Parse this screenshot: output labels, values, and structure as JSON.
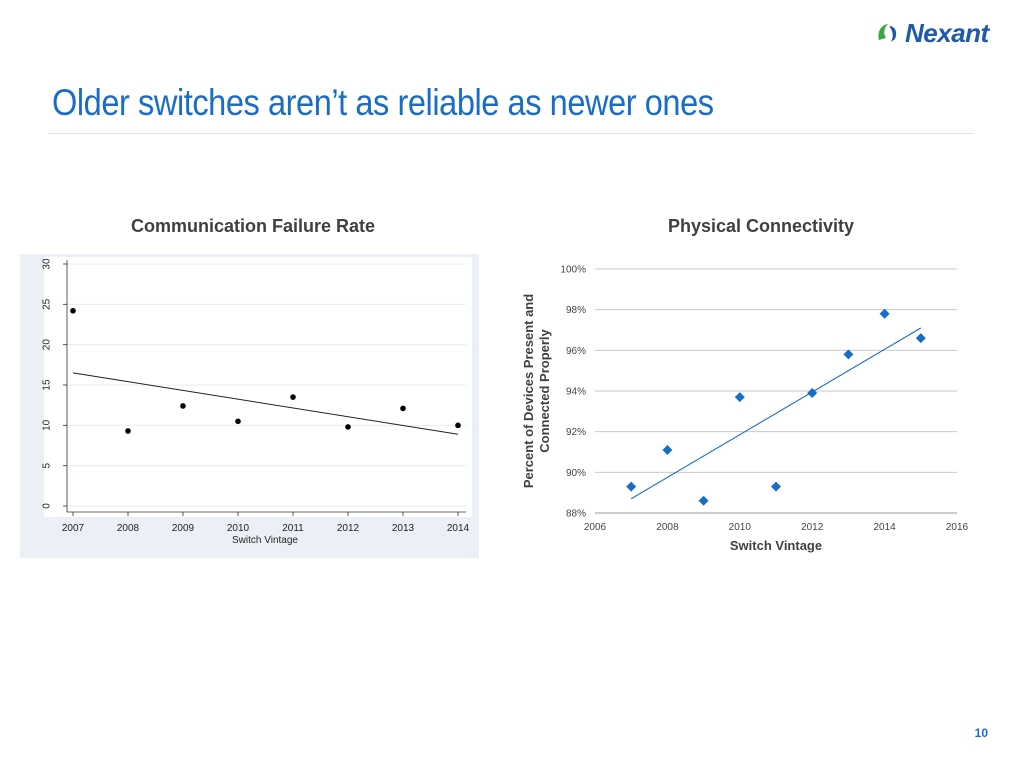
{
  "slide": {
    "title": "Older switches aren’t as reliable as newer ones",
    "page_number": "10",
    "logo_text": "Nexant",
    "title_color": "#1a6dc7"
  },
  "chart_data": [
    {
      "type": "scatter",
      "title": "Communication Failure Rate",
      "xlabel": "Switch Vintage",
      "ylabel": "",
      "x_ticks": [
        "2007",
        "2008",
        "2009",
        "2010",
        "2011",
        "2012",
        "2013",
        "2014"
      ],
      "y_ticks": [
        "0",
        "5",
        "10",
        "15",
        "20",
        "25",
        "30"
      ],
      "xlim": [
        2007,
        2014
      ],
      "ylim": [
        0,
        30
      ],
      "points": [
        {
          "x": 2007,
          "y": 24.2
        },
        {
          "x": 2008,
          "y": 9.3
        },
        {
          "x": 2009,
          "y": 12.4
        },
        {
          "x": 2010,
          "y": 10.5
        },
        {
          "x": 2011,
          "y": 13.5
        },
        {
          "x": 2012,
          "y": 9.8
        },
        {
          "x": 2013,
          "y": 12.1
        },
        {
          "x": 2014,
          "y": 10.0
        }
      ],
      "trendline": {
        "x": [
          2007,
          2014
        ],
        "y": [
          16.5,
          8.9
        ]
      },
      "marker_color": "#000000",
      "grid": true,
      "legend": "none"
    },
    {
      "type": "scatter",
      "title": "Physical Connectivity",
      "xlabel": "Switch Vintage",
      "ylabel": "Percent of Devices Present and Connected Properly",
      "x_ticks": [
        "2006",
        "2008",
        "2010",
        "2012",
        "2014",
        "2016"
      ],
      "y_ticks": [
        "88%",
        "90%",
        "92%",
        "94%",
        "96%",
        "98%",
        "100%"
      ],
      "xlim": [
        2006,
        2016
      ],
      "ylim": [
        88,
        100
      ],
      "points": [
        {
          "x": 2007,
          "y": 89.3
        },
        {
          "x": 2008,
          "y": 91.1
        },
        {
          "x": 2009,
          "y": 88.6
        },
        {
          "x": 2010,
          "y": 93.7
        },
        {
          "x": 2011,
          "y": 89.3
        },
        {
          "x": 2012,
          "y": 93.9
        },
        {
          "x": 2013,
          "y": 95.8
        },
        {
          "x": 2014,
          "y": 97.8
        },
        {
          "x": 2015,
          "y": 96.6
        }
      ],
      "trendline": {
        "x": [
          2007,
          2015
        ],
        "y": [
          88.7,
          97.1
        ]
      },
      "marker_color": "#1a6dc7",
      "grid": true,
      "legend": "none"
    }
  ]
}
